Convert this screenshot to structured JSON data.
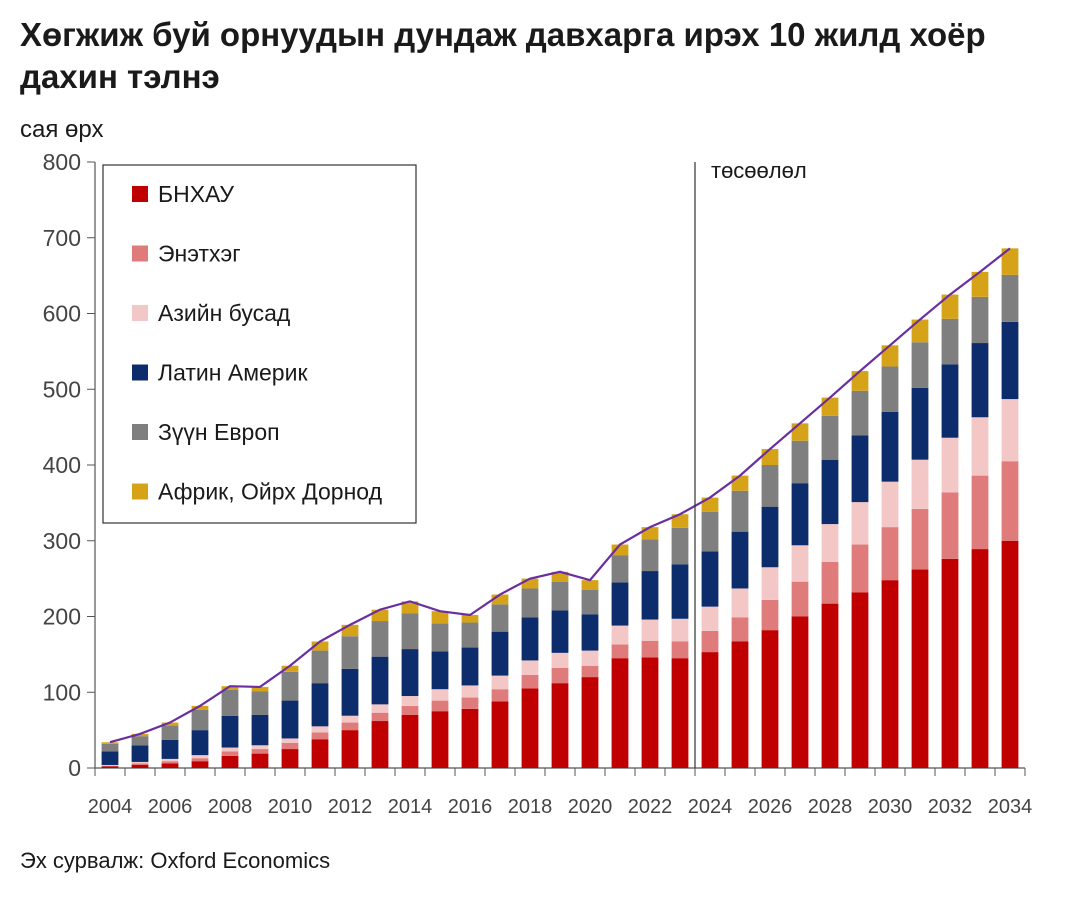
{
  "title": "Хөгжиж буй орнуудын дундаж давхарга ирэх 10 жилд хоёр дахин тэлнэ",
  "unit_label": "сая өрх",
  "source": "Эх сурвалж: Oxford Economics",
  "chart_data": {
    "type": "bar",
    "stacked": true,
    "title": "Хөгжиж буй орнуудын дундаж давхарга ирэх 10 жилд хоёр дахин тэлнэ",
    "ylabel": "сая өрх",
    "ylim": [
      0,
      800
    ],
    "yticks": [
      0,
      100,
      200,
      300,
      400,
      500,
      600,
      700,
      800
    ],
    "x_tick_labels": [
      "2004",
      "2006",
      "2008",
      "2010",
      "2012",
      "2014",
      "2016",
      "2018",
      "2020",
      "2022",
      "2024",
      "2026",
      "2028",
      "2030",
      "2032",
      "2034"
    ],
    "categories": [
      2004,
      2005,
      2006,
      2007,
      2008,
      2009,
      2010,
      2011,
      2012,
      2013,
      2014,
      2015,
      2016,
      2017,
      2018,
      2019,
      2020,
      2021,
      2022,
      2023,
      2024,
      2025,
      2026,
      2027,
      2028,
      2029,
      2030,
      2031,
      2032,
      2033,
      2034
    ],
    "forecast_start": 2024,
    "forecast_label": "төсөөлөл",
    "legend_position": "top-left",
    "series": [
      {
        "name": "БНХАУ",
        "color": "#c00000",
        "values": [
          2,
          4,
          6,
          9,
          16,
          19,
          25,
          38,
          50,
          62,
          70,
          75,
          78,
          88,
          105,
          112,
          120,
          145,
          146,
          145,
          153,
          167,
          182,
          200,
          217,
          232,
          248,
          262,
          276,
          289,
          300
        ]
      },
      {
        "name": "Энэтхэг",
        "color": "#e07b7b",
        "values": [
          1,
          2,
          3,
          4,
          6,
          6,
          8,
          9,
          10,
          11,
          12,
          14,
          15,
          16,
          18,
          20,
          15,
          18,
          22,
          22,
          28,
          32,
          40,
          46,
          55,
          63,
          70,
          80,
          88,
          97,
          105
        ]
      },
      {
        "name": "Азийн бусад",
        "color": "#f4c7c7",
        "values": [
          1,
          2,
          3,
          4,
          5,
          5,
          6,
          8,
          9,
          11,
          13,
          15,
          16,
          18,
          19,
          20,
          20,
          25,
          28,
          30,
          32,
          38,
          43,
          48,
          50,
          56,
          60,
          65,
          72,
          77,
          82
        ]
      },
      {
        "name": "Латин Америк",
        "color": "#0d2c6c",
        "values": [
          18,
          22,
          25,
          33,
          42,
          40,
          50,
          57,
          62,
          63,
          62,
          50,
          50,
          58,
          57,
          56,
          48,
          57,
          64,
          72,
          73,
          75,
          80,
          82,
          85,
          88,
          92,
          95,
          97,
          98,
          102
        ]
      },
      {
        "name": "Зүүн Европ",
        "color": "#7f7f7f",
        "values": [
          10,
          12,
          19,
          27,
          34,
          31,
          38,
          43,
          43,
          47,
          47,
          37,
          33,
          36,
          38,
          38,
          32,
          36,
          42,
          48,
          52,
          54,
          55,
          56,
          58,
          59,
          60,
          60,
          60,
          61,
          62
        ]
      },
      {
        "name": "Африк, Ойрх Дорнод",
        "color": "#d6a318",
        "values": [
          2,
          3,
          4,
          5,
          5,
          6,
          8,
          12,
          15,
          15,
          16,
          16,
          10,
          13,
          13,
          13,
          13,
          14,
          16,
          18,
          19,
          20,
          21,
          23,
          24,
          26,
          28,
          30,
          32,
          33,
          35
        ]
      }
    ],
    "total_line": {
      "color": "#6a2ea0",
      "values": [
        34,
        45,
        60,
        82,
        108,
        107,
        135,
        167,
        189,
        209,
        220,
        207,
        202,
        229,
        250,
        259,
        248,
        295,
        318,
        335,
        357,
        386,
        421,
        455,
        489,
        524,
        558,
        592,
        625,
        655,
        686
      ]
    }
  }
}
